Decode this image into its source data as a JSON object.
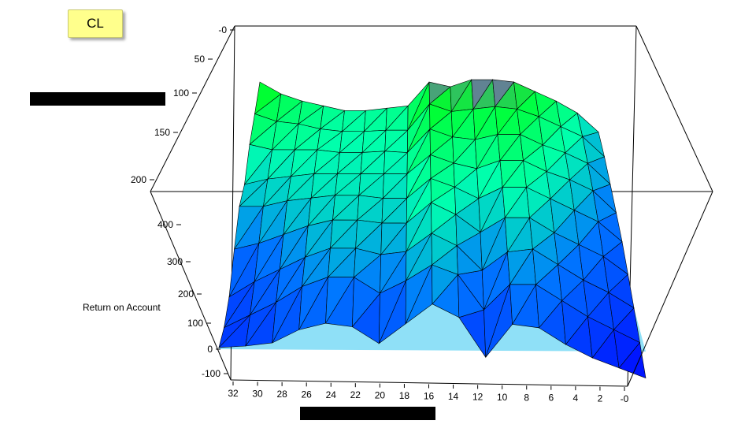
{
  "badge": {
    "label": "CL"
  },
  "chart_data": {
    "type": "surface-3d",
    "axes": {
      "y_label": "Return on Account",
      "x_ticks": [
        "32",
        "30",
        "28",
        "26",
        "24",
        "22",
        "20",
        "18",
        "16",
        "14",
        "12",
        "10",
        "8",
        "6",
        "4",
        "2",
        "-0"
      ],
      "depth_ticks": [
        "-0",
        "50",
        "100",
        "150",
        "200"
      ],
      "y_ticks": [
        "400",
        "300",
        "200",
        "100",
        "0",
        "-100"
      ],
      "x_range": [
        32,
        0
      ],
      "depth_range": [
        0,
        200
      ],
      "y_range": [
        -100,
        420
      ]
    },
    "colors": {
      "floor": "#8fe0f7",
      "edge": "#000000",
      "low": "#0000ff",
      "high": "#00ff40",
      "peak": "#ff00ff"
    },
    "grid": false,
    "x_values": [
      32,
      30,
      28,
      26,
      24,
      22,
      20,
      18,
      16,
      14,
      12,
      10,
      8,
      6,
      4,
      2,
      0
    ],
    "depth_values": [
      0,
      25,
      50,
      75,
      100,
      125,
      150,
      175,
      200
    ],
    "z_values": [
      [
        5,
        0,
        30,
        120,
        200,
        210,
        290,
        340,
        400
      ],
      [
        10,
        40,
        80,
        140,
        200,
        230,
        270,
        310,
        350
      ],
      [
        20,
        80,
        120,
        170,
        220,
        240,
        270,
        300,
        320
      ],
      [
        60,
        130,
        160,
        200,
        230,
        250,
        270,
        280,
        300
      ],
      [
        80,
        160,
        190,
        220,
        240,
        250,
        260,
        270,
        280
      ],
      [
        70,
        160,
        190,
        220,
        240,
        250,
        260,
        270,
        280
      ],
      [
        20,
        110,
        170,
        210,
        230,
        250,
        265,
        275,
        290
      ],
      [
        80,
        150,
        180,
        210,
        230,
        250,
        260,
        275,
        300
      ],
      [
        140,
        200,
        240,
        280,
        300,
        320,
        350,
        380,
        400
      ],
      [
        100,
        170,
        200,
        240,
        270,
        290,
        320,
        350,
        380
      ],
      [
        -20,
        60,
        120,
        180,
        230,
        270,
        310,
        360,
        410
      ],
      [
        80,
        140,
        180,
        230,
        270,
        300,
        330,
        370,
        410
      ],
      [
        70,
        140,
        190,
        230,
        270,
        300,
        330,
        360,
        400
      ],
      [
        20,
        90,
        140,
        180,
        230,
        260,
        290,
        330,
        360
      ],
      [
        -20,
        40,
        90,
        140,
        190,
        230,
        260,
        290,
        320
      ],
      [
        -50,
        0,
        50,
        100,
        150,
        190,
        220,
        250,
        270
      ],
      [
        -80,
        -40,
        0,
        40,
        80,
        110,
        140,
        170,
        190
      ]
    ]
  }
}
